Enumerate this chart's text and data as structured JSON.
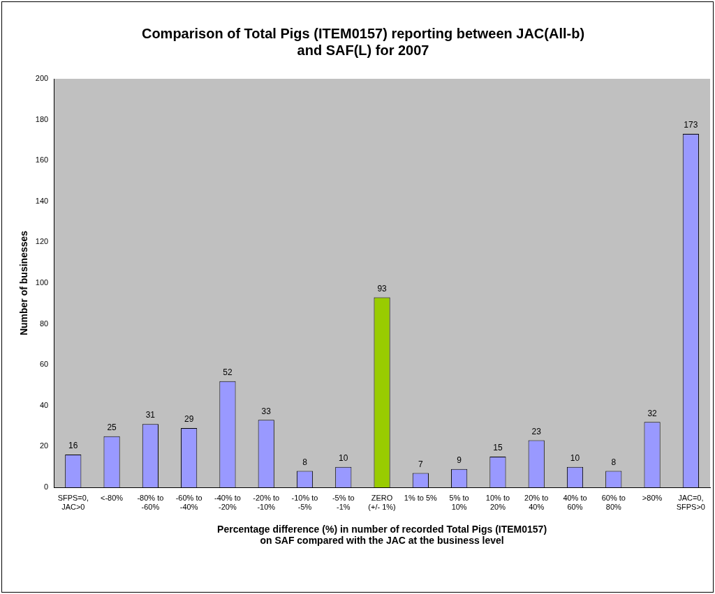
{
  "chart_data": {
    "type": "bar",
    "title": "Comparison of Total Pigs (ITEM0157) reporting between JAC(All-b)\nand SAF(L) for 2007",
    "xlabel": "Percentage difference (%) in number of recorded Total Pigs (ITEM0157)\non SAF compared with the JAC at the business level",
    "ylabel": "Number of businesses",
    "categories": [
      "SFPS=0, JAC>0",
      "<-80%",
      "-80% to -60%",
      "-60% to -40%",
      "-40% to -20%",
      "-20% to -10%",
      "-10% to -5%",
      "-5% to -1%",
      "ZERO (+/- 1%)",
      "1% to 5%",
      "5% to 10%",
      "10% to 20%",
      "20% to 40%",
      "40% to 60%",
      "60% to 80%",
      ">80%",
      "JAC=0, SFPS>0"
    ],
    "values": [
      16,
      25,
      31,
      29,
      52,
      33,
      8,
      10,
      93,
      7,
      9,
      15,
      23,
      10,
      8,
      32,
      173
    ],
    "colors": [
      "#9999ff",
      "#9999ff",
      "#9999ff",
      "#9999ff",
      "#9999ff",
      "#9999ff",
      "#9999ff",
      "#9999ff",
      "#99cc00",
      "#9999ff",
      "#9999ff",
      "#9999ff",
      "#9999ff",
      "#9999ff",
      "#9999ff",
      "#9999ff",
      "#9999ff"
    ],
    "ylim": [
      0,
      200
    ],
    "yticks": [
      0,
      20,
      40,
      60,
      80,
      100,
      120,
      140,
      160,
      180,
      200
    ],
    "grid": false,
    "legend": false,
    "data_labels": true
  }
}
